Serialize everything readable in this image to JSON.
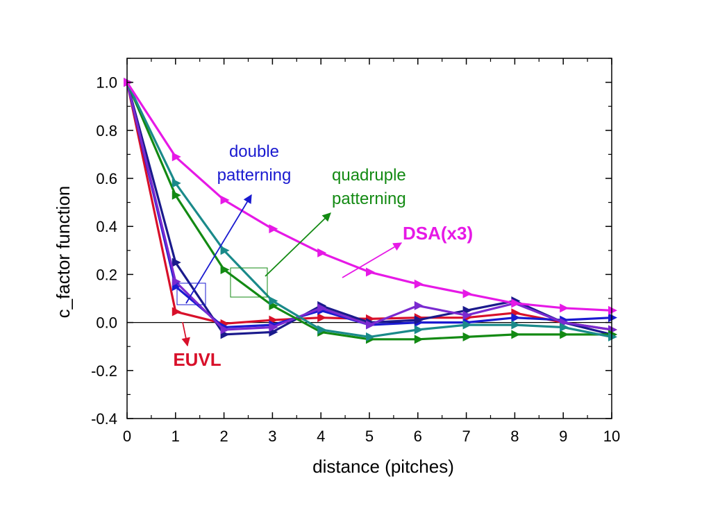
{
  "chart_data": {
    "type": "line",
    "xlabel": "distance (pitches)",
    "ylabel": "c_factor function",
    "xlim": [
      0,
      10
    ],
    "ylim": [
      -0.4,
      1.1
    ],
    "x_ticks": [
      "0",
      "1",
      "2",
      "3",
      "4",
      "5",
      "6",
      "7",
      "8",
      "9",
      "10"
    ],
    "y_ticks": [
      "-0.4",
      "-0.2",
      "0.0",
      "0.2",
      "0.4",
      "0.6",
      "0.8",
      "1.0"
    ],
    "x_tick_values": [
      0,
      1,
      2,
      3,
      4,
      5,
      6,
      7,
      8,
      9,
      10
    ],
    "y_tick_values": [
      -0.4,
      -0.2,
      0.0,
      0.2,
      0.4,
      0.6,
      0.8,
      1.0
    ],
    "zero_line": true,
    "grid": false,
    "marker": "right-triangle",
    "x": [
      0,
      1,
      2,
      3,
      4,
      5,
      6,
      7,
      8,
      9,
      10
    ],
    "series": [
      {
        "color": "#d8102a",
        "values": [
          1.0,
          0.045,
          -0.005,
          0.01,
          0.02,
          0.015,
          0.02,
          0.02,
          0.04,
          0.0,
          -0.03
        ]
      },
      {
        "color": "#1a1ad0",
        "values": [
          1.0,
          0.15,
          -0.02,
          -0.01,
          0.05,
          -0.01,
          0.0,
          0.0,
          0.02,
          0.01,
          0.02
        ]
      },
      {
        "color": "#1a1a8c",
        "values": [
          1.0,
          0.25,
          -0.05,
          -0.04,
          0.07,
          0.0,
          0.01,
          0.05,
          0.09,
          0.0,
          -0.05
        ]
      },
      {
        "color": "#7a2ad0",
        "values": [
          1.0,
          0.17,
          -0.03,
          -0.02,
          0.06,
          -0.01,
          0.07,
          0.03,
          0.08,
          0.0,
          -0.03
        ]
      },
      {
        "color": "#138a13",
        "values": [
          1.0,
          0.53,
          0.22,
          0.07,
          -0.04,
          -0.07,
          -0.07,
          -0.06,
          -0.05,
          -0.05,
          -0.05
        ]
      },
      {
        "color": "#1a8a8a",
        "values": [
          1.0,
          0.58,
          0.3,
          0.09,
          -0.03,
          -0.06,
          -0.03,
          -0.01,
          -0.01,
          -0.02,
          -0.06
        ]
      },
      {
        "color": "#e619e6",
        "values": [
          1.0,
          0.69,
          0.51,
          0.39,
          0.29,
          0.21,
          0.16,
          0.12,
          0.08,
          0.06,
          0.05
        ]
      }
    ],
    "annotations": [
      {
        "lines": [
          "double",
          "patterning"
        ],
        "color": "#1a1ad0",
        "bold": false
      },
      {
        "lines": [
          "quadruple",
          "patterning"
        ],
        "color": "#138a13",
        "bold": false
      },
      {
        "lines": [
          "DSA(x3)"
        ],
        "color": "#e619e6",
        "bold": true
      },
      {
        "lines": [
          "EUVL"
        ],
        "color": "#d8102a",
        "bold": true
      }
    ]
  }
}
